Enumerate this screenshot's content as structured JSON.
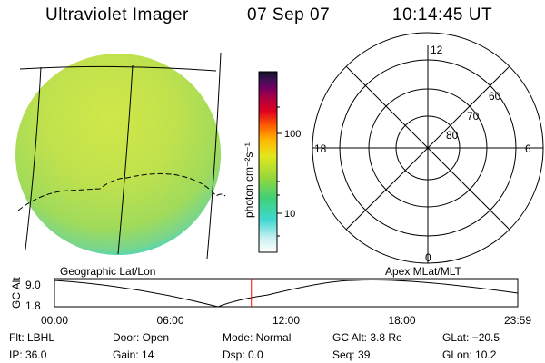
{
  "header": {
    "title": "Ultraviolet Imager",
    "date": "07 Sep 07",
    "time": "10:14:45 UT"
  },
  "colorbar": {
    "unit_label": "photon cm⁻²s⁻¹",
    "tick_100": "100",
    "tick_10": "10"
  },
  "polar": {
    "mlt_top": "12",
    "mlt_bottom": "0",
    "mlt_left": "18",
    "mlt_right": "6",
    "lat_60": "60",
    "lat_70": "70",
    "lat_80": "80"
  },
  "timeline": {
    "left_label": "Geographic Lat/Lon",
    "right_label": "Apex  MLat/MLT",
    "yaxis_label": "GC Alt",
    "y_max": "9.0",
    "y_min": "1.8",
    "x_ticks": [
      "00:00",
      "06:00",
      "12:00",
      "18:00",
      "23:59"
    ],
    "current_time_fraction": 0.425
  },
  "info": {
    "flt": "Flt: LBHL",
    "ip": "IP: 36.0",
    "door": "Door: Open",
    "gain": "Gain: 14",
    "mode": "Mode: Normal",
    "dsp": "Dsp:     0.0",
    "gcalt": "GC Alt: 3.8 Re",
    "seq": "Seq: 39",
    "glat": "GLat: −20.5",
    "glon": "GLon:   10.2"
  },
  "colors": {
    "marker": "#ff0000",
    "disk_main": "#c0e040",
    "disk_edge": "#3ed8c8"
  }
}
